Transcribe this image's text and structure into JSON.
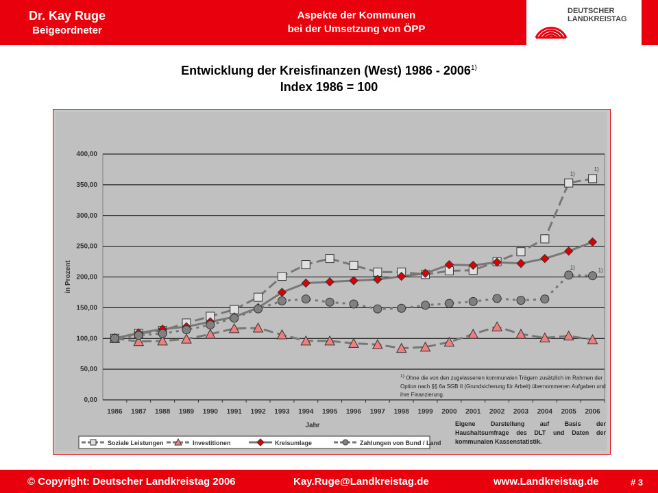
{
  "header": {
    "author_name": "Dr. Kay Ruge",
    "author_role": "Beigeordneter",
    "topic_line1": "Aspekte der Kommunen",
    "topic_line2": "bei der Umsetzung von ÖPP",
    "logo_line1": "DEUTSCHER",
    "logo_line2": "LANDKREISTAG"
  },
  "slide": {
    "title_line1": "Entwicklung der Kreisfinanzen (West) 1986 - 2006",
    "title_sup": "1)",
    "title_line2": "Index 1986 = 100"
  },
  "chart_data": {
    "type": "line",
    "title": "",
    "xlabel": "Jahr",
    "ylabel": "in Prozent",
    "ylim": [
      0,
      400
    ],
    "yticks": [
      "0,00",
      "50,00",
      "100,00",
      "150,00",
      "200,00",
      "250,00",
      "300,00",
      "350,00",
      "400,00"
    ],
    "grid": true,
    "legend_position": "bottom-left",
    "categories": [
      "1986",
      "1987",
      "1988",
      "1989",
      "1990",
      "1991",
      "1992",
      "1993",
      "1994",
      "1995",
      "1996",
      "1997",
      "1998",
      "1999",
      "2000",
      "2001",
      "2002",
      "2003",
      "2004",
      "2005",
      "2006"
    ],
    "series": [
      {
        "name": "Soziale Leistungen",
        "marker": "square",
        "color": "#e0e0e0",
        "values": [
          100,
          108,
          113,
          125,
          136,
          147,
          167,
          201,
          220,
          230,
          219,
          208,
          208,
          204,
          210,
          211,
          225,
          241,
          262,
          353,
          360
        ]
      },
      {
        "name": "Investitionen",
        "marker": "triangle",
        "color": "#f08080",
        "values": [
          100,
          95,
          96,
          99,
          107,
          116,
          117,
          106,
          96,
          96,
          92,
          90,
          84,
          86,
          94,
          107,
          119,
          107,
          101,
          104,
          98
        ]
      },
      {
        "name": "Kreisumlage",
        "marker": "diamond",
        "color": "#dd0000",
        "values": [
          100,
          109,
          115,
          119,
          127,
          135,
          150,
          175,
          190,
          192,
          194,
          196,
          201,
          206,
          220,
          219,
          224,
          222,
          230,
          242,
          257
        ]
      },
      {
        "name": "Zahlungen von Bund / Land",
        "marker": "circle",
        "color": "#808080",
        "values": [
          100,
          105,
          108,
          114,
          122,
          133,
          148,
          161,
          164,
          159,
          156,
          148,
          149,
          154,
          157,
          160,
          165,
          162,
          164,
          203,
          202
        ]
      }
    ],
    "annotations": [
      "1)",
      "1)",
      "1)",
      "1)"
    ],
    "footnote_mark": "1)",
    "footnote": "Ohne die von den zugelassenen kommunalen Trägern zusätzlich im Rahmen der Option nach §§ 6a SGB II (Grundsicherung für Arbeit) übernommenen Aufgaben und ihre Finanzierung.",
    "source_note": "Eigene Darstellung auf Basis der Haushaltsumfrage des DLT und Daten der kommunalen Kassenstatistik."
  },
  "colors": {
    "brand_red": "#e8000d",
    "plot_background": "#c0c0c0",
    "series_line": "#808080"
  },
  "footer": {
    "copyright": "Copyright: Deutscher Landkreistag 2006",
    "copyright_symbol": "©",
    "email": "Kay.Ruge@Landkreistag.de",
    "website": "www.Landkreistag.de",
    "page_number": "# 3"
  }
}
